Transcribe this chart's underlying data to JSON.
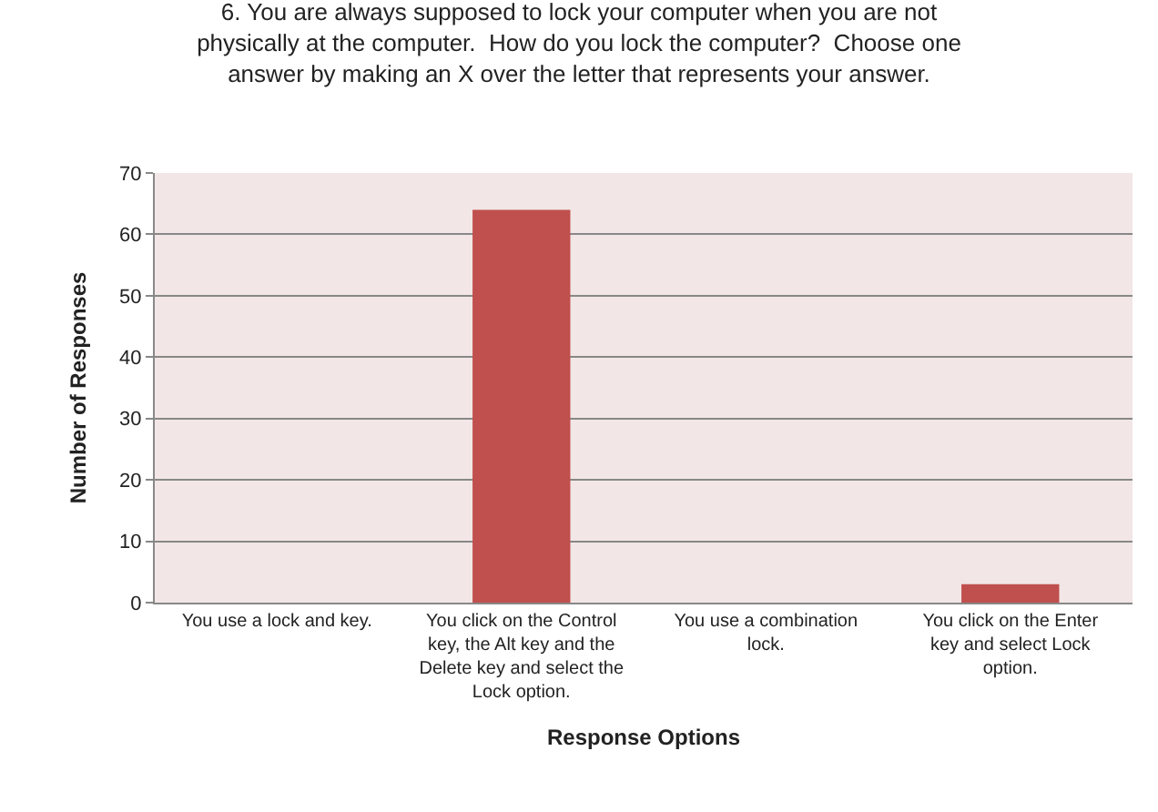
{
  "chart_data": {
    "type": "bar",
    "title": "6. You are always supposed to lock your computer when you are not physically at the computer.  How do you lock the computer?  Choose one answer by making an X over the letter that represents your answer.",
    "xlabel": "Response Options",
    "ylabel": "Number of Responses",
    "categories": [
      "You use a lock and key.",
      "You click on the Control key, the Alt key and the Delete key and select the Lock option.",
      "You use a combination lock.",
      "You click on the Enter key and select Lock option."
    ],
    "values": [
      0,
      64,
      0,
      3
    ],
    "color": "#c0504d",
    "ylim": [
      0,
      70
    ],
    "yticks": [
      0,
      10,
      20,
      30,
      40,
      50,
      60,
      70
    ],
    "grid": "y",
    "legend": false
  }
}
